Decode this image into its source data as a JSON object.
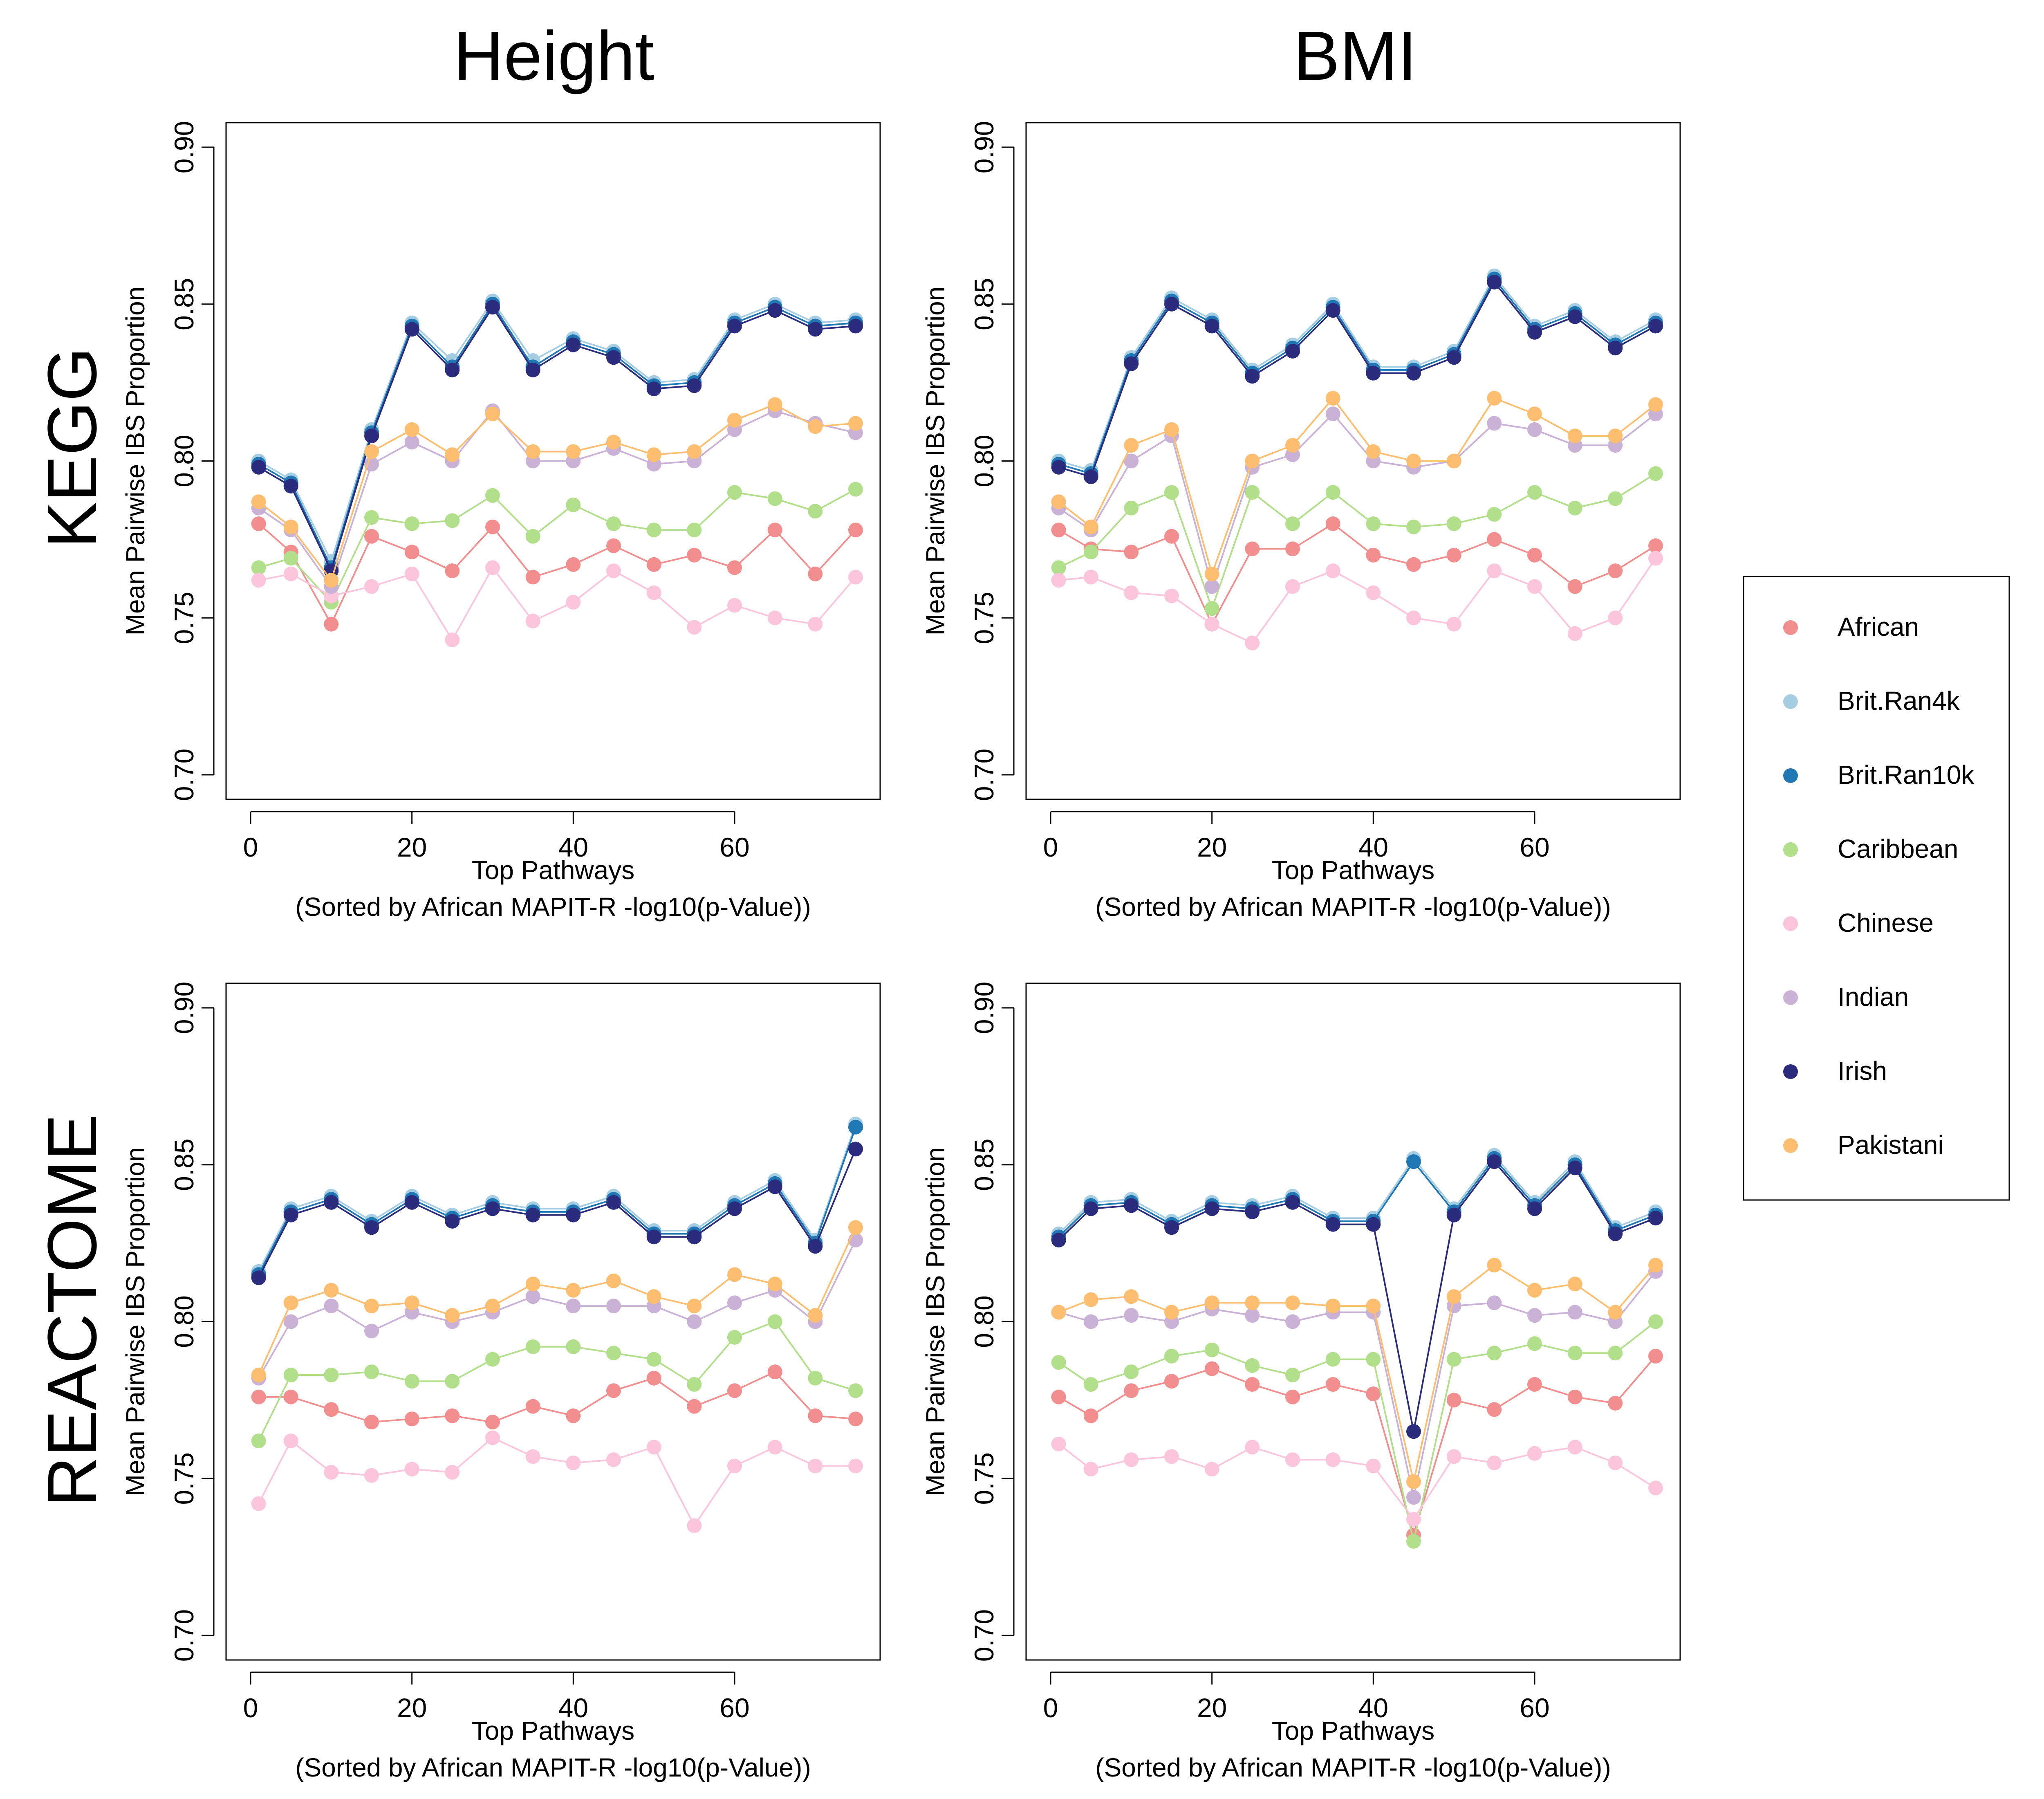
{
  "column_titles": [
    "Height",
    "BMI"
  ],
  "row_titles": [
    "KEGG",
    "REACTOME"
  ],
  "legend": [
    {
      "name": "African",
      "color": "#F28E8E"
    },
    {
      "name": "Brit.Ran4k",
      "color": "#A6CEE3"
    },
    {
      "name": "Brit.Ran10k",
      "color": "#1F78B4"
    },
    {
      "name": "Caribbean",
      "color": "#B2DF8A"
    },
    {
      "name": "Chinese",
      "color": "#FBC6DC"
    },
    {
      "name": "Indian",
      "color": "#CAB2D6"
    },
    {
      "name": "Irish",
      "color": "#2C2C7E"
    },
    {
      "name": "Pakistani",
      "color": "#FDBF6F"
    }
  ],
  "chart_data": [
    {
      "type": "line",
      "title": "Height",
      "row": "KEGG",
      "xlabel": "Top Pathways",
      "xlabel2": "(Sorted by African MAPIT-R -log10(p-Value))",
      "ylabel": "Mean Pairwise IBS Proportion",
      "xlim": [
        0,
        75
      ],
      "ylim": [
        0.7,
        0.9
      ],
      "xticks": [
        "0",
        "20",
        "40",
        "60"
      ],
      "yticks": [
        "0.70",
        "0.75",
        "0.80",
        "0.85",
        "0.90"
      ],
      "x": [
        1,
        5,
        10,
        15,
        20,
        25,
        30,
        35,
        40,
        45,
        50,
        55,
        60,
        65,
        70,
        75
      ],
      "series": [
        {
          "name": "African",
          "values": [
            0.78,
            0.771,
            0.748,
            0.776,
            0.771,
            0.765,
            0.779,
            0.763,
            0.767,
            0.773,
            0.767,
            0.77,
            0.766,
            0.778,
            0.764,
            0.778
          ]
        },
        {
          "name": "Brit.Ran4k",
          "values": [
            0.8,
            0.794,
            0.768,
            0.81,
            0.844,
            0.832,
            0.851,
            0.832,
            0.839,
            0.835,
            0.825,
            0.826,
            0.845,
            0.85,
            0.844,
            0.845
          ]
        },
        {
          "name": "Brit.Ran10k",
          "values": [
            0.799,
            0.793,
            0.766,
            0.809,
            0.843,
            0.83,
            0.85,
            0.83,
            0.838,
            0.834,
            0.824,
            0.825,
            0.844,
            0.849,
            0.843,
            0.844
          ]
        },
        {
          "name": "Caribbean",
          "values": [
            0.766,
            0.769,
            0.755,
            0.782,
            0.78,
            0.781,
            0.789,
            0.776,
            0.786,
            0.78,
            0.778,
            0.778,
            0.79,
            0.788,
            0.784,
            0.791
          ]
        },
        {
          "name": "Chinese",
          "values": [
            0.762,
            0.764,
            0.757,
            0.76,
            0.764,
            0.743,
            0.766,
            0.749,
            0.755,
            0.765,
            0.758,
            0.747,
            0.754,
            0.75,
            0.748,
            0.763
          ]
        },
        {
          "name": "Indian",
          "values": [
            0.785,
            0.778,
            0.76,
            0.799,
            0.806,
            0.8,
            0.816,
            0.8,
            0.8,
            0.804,
            0.799,
            0.8,
            0.81,
            0.816,
            0.812,
            0.809
          ]
        },
        {
          "name": "Irish",
          "values": [
            0.798,
            0.792,
            0.765,
            0.808,
            0.842,
            0.829,
            0.849,
            0.829,
            0.837,
            0.833,
            0.823,
            0.824,
            0.843,
            0.848,
            0.842,
            0.843
          ]
        },
        {
          "name": "Pakistani",
          "values": [
            0.787,
            0.779,
            0.762,
            0.803,
            0.81,
            0.802,
            0.815,
            0.803,
            0.803,
            0.806,
            0.802,
            0.803,
            0.813,
            0.818,
            0.811,
            0.812
          ]
        }
      ]
    },
    {
      "type": "line",
      "title": "BMI",
      "row": "KEGG",
      "xlabel": "Top Pathways",
      "xlabel2": "(Sorted by African MAPIT-R -log10(p-Value))",
      "ylabel": "Mean Pairwise IBS Proportion",
      "xlim": [
        0,
        75
      ],
      "ylim": [
        0.7,
        0.9
      ],
      "xticks": [
        "0",
        "20",
        "40",
        "60"
      ],
      "yticks": [
        "0.70",
        "0.75",
        "0.80",
        "0.85",
        "0.90"
      ],
      "x": [
        1,
        5,
        10,
        15,
        20,
        25,
        30,
        35,
        40,
        45,
        50,
        55,
        60,
        65,
        70,
        75
      ],
      "series": [
        {
          "name": "African",
          "values": [
            0.778,
            0.772,
            0.771,
            0.776,
            0.748,
            0.772,
            0.772,
            0.78,
            0.77,
            0.767,
            0.77,
            0.775,
            0.77,
            0.76,
            0.765,
            0.773
          ]
        },
        {
          "name": "Brit.Ran4k",
          "values": [
            0.8,
            0.797,
            0.833,
            0.852,
            0.845,
            0.829,
            0.837,
            0.85,
            0.83,
            0.83,
            0.835,
            0.859,
            0.843,
            0.848,
            0.838,
            0.845
          ]
        },
        {
          "name": "Brit.Ran10k",
          "values": [
            0.799,
            0.796,
            0.832,
            0.851,
            0.844,
            0.828,
            0.836,
            0.849,
            0.829,
            0.829,
            0.834,
            0.858,
            0.842,
            0.847,
            0.837,
            0.844
          ]
        },
        {
          "name": "Caribbean",
          "values": [
            0.766,
            0.771,
            0.785,
            0.79,
            0.753,
            0.79,
            0.78,
            0.79,
            0.78,
            0.779,
            0.78,
            0.783,
            0.79,
            0.785,
            0.788,
            0.796
          ]
        },
        {
          "name": "Chinese",
          "values": [
            0.762,
            0.763,
            0.758,
            0.757,
            0.748,
            0.742,
            0.76,
            0.765,
            0.758,
            0.75,
            0.748,
            0.765,
            0.76,
            0.745,
            0.75,
            0.769
          ]
        },
        {
          "name": "Indian",
          "values": [
            0.785,
            0.778,
            0.8,
            0.808,
            0.76,
            0.798,
            0.802,
            0.815,
            0.8,
            0.798,
            0.8,
            0.812,
            0.81,
            0.805,
            0.805,
            0.815
          ]
        },
        {
          "name": "Irish",
          "values": [
            0.798,
            0.795,
            0.831,
            0.85,
            0.843,
            0.827,
            0.835,
            0.848,
            0.828,
            0.828,
            0.833,
            0.857,
            0.841,
            0.846,
            0.836,
            0.843
          ]
        },
        {
          "name": "Pakistani",
          "values": [
            0.787,
            0.779,
            0.805,
            0.81,
            0.764,
            0.8,
            0.805,
            0.82,
            0.803,
            0.8,
            0.8,
            0.82,
            0.815,
            0.808,
            0.808,
            0.818
          ]
        }
      ]
    },
    {
      "type": "line",
      "title": "Height",
      "row": "REACTOME",
      "xlabel": "Top Pathways",
      "xlabel2": "(Sorted by African MAPIT-R -log10(p-Value))",
      "ylabel": "Mean Pairwise IBS Proportion",
      "xlim": [
        0,
        75
      ],
      "ylim": [
        0.7,
        0.9
      ],
      "xticks": [
        "0",
        "20",
        "40",
        "60"
      ],
      "yticks": [
        "0.70",
        "0.75",
        "0.80",
        "0.85",
        "0.90"
      ],
      "x": [
        1,
        5,
        10,
        15,
        20,
        25,
        30,
        35,
        40,
        45,
        50,
        55,
        60,
        65,
        70,
        75
      ],
      "series": [
        {
          "name": "African",
          "values": [
            0.776,
            0.776,
            0.772,
            0.768,
            0.769,
            0.77,
            0.768,
            0.773,
            0.77,
            0.778,
            0.782,
            0.773,
            0.778,
            0.784,
            0.77,
            0.769
          ]
        },
        {
          "name": "Brit.Ran4k",
          "values": [
            0.816,
            0.836,
            0.84,
            0.832,
            0.84,
            0.834,
            0.838,
            0.836,
            0.836,
            0.84,
            0.829,
            0.829,
            0.838,
            0.845,
            0.826,
            0.863
          ]
        },
        {
          "name": "Brit.Ran10k",
          "values": [
            0.815,
            0.835,
            0.839,
            0.831,
            0.839,
            0.833,
            0.837,
            0.835,
            0.835,
            0.839,
            0.828,
            0.828,
            0.837,
            0.844,
            0.825,
            0.862
          ]
        },
        {
          "name": "Caribbean",
          "values": [
            0.762,
            0.783,
            0.783,
            0.784,
            0.781,
            0.781,
            0.788,
            0.792,
            0.792,
            0.79,
            0.788,
            0.78,
            0.795,
            0.8,
            0.782,
            0.778
          ]
        },
        {
          "name": "Chinese",
          "values": [
            0.742,
            0.762,
            0.752,
            0.751,
            0.753,
            0.752,
            0.763,
            0.757,
            0.755,
            0.756,
            0.76,
            0.735,
            0.754,
            0.76,
            0.754,
            0.754
          ]
        },
        {
          "name": "Indian",
          "values": [
            0.782,
            0.8,
            0.805,
            0.797,
            0.803,
            0.8,
            0.803,
            0.808,
            0.805,
            0.805,
            0.805,
            0.8,
            0.806,
            0.81,
            0.8,
            0.826
          ]
        },
        {
          "name": "Irish",
          "values": [
            0.814,
            0.834,
            0.838,
            0.83,
            0.838,
            0.832,
            0.836,
            0.834,
            0.834,
            0.838,
            0.827,
            0.827,
            0.836,
            0.843,
            0.824,
            0.855
          ]
        },
        {
          "name": "Pakistani",
          "values": [
            0.783,
            0.806,
            0.81,
            0.805,
            0.806,
            0.802,
            0.805,
            0.812,
            0.81,
            0.813,
            0.808,
            0.805,
            0.815,
            0.812,
            0.802,
            0.83
          ]
        }
      ]
    },
    {
      "type": "line",
      "title": "BMI",
      "row": "REACTOME",
      "xlabel": "Top Pathways",
      "xlabel2": "(Sorted by African MAPIT-R -log10(p-Value))",
      "ylabel": "Mean Pairwise IBS Proportion",
      "xlim": [
        0,
        75
      ],
      "ylim": [
        0.7,
        0.9
      ],
      "xticks": [
        "0",
        "20",
        "40",
        "60"
      ],
      "yticks": [
        "0.70",
        "0.75",
        "0.80",
        "0.85",
        "0.90"
      ],
      "x": [
        1,
        5,
        10,
        15,
        20,
        25,
        30,
        35,
        40,
        45,
        50,
        55,
        60,
        65,
        70,
        75
      ],
      "series": [
        {
          "name": "African",
          "values": [
            0.776,
            0.77,
            0.778,
            0.781,
            0.785,
            0.78,
            0.776,
            0.78,
            0.777,
            0.732,
            0.775,
            0.772,
            0.78,
            0.776,
            0.774,
            0.789
          ]
        },
        {
          "name": "Brit.Ran4k",
          "values": [
            0.828,
            0.838,
            0.839,
            0.832,
            0.838,
            0.837,
            0.84,
            0.833,
            0.833,
            0.852,
            0.836,
            0.853,
            0.838,
            0.851,
            0.83,
            0.835
          ]
        },
        {
          "name": "Brit.Ran10k",
          "values": [
            0.827,
            0.837,
            0.838,
            0.831,
            0.837,
            0.836,
            0.839,
            0.832,
            0.832,
            0.851,
            0.835,
            0.852,
            0.837,
            0.85,
            0.829,
            0.834
          ]
        },
        {
          "name": "Caribbean",
          "values": [
            0.787,
            0.78,
            0.784,
            0.789,
            0.791,
            0.786,
            0.783,
            0.788,
            0.788,
            0.73,
            0.788,
            0.79,
            0.793,
            0.79,
            0.79,
            0.8
          ]
        },
        {
          "name": "Chinese",
          "values": [
            0.761,
            0.753,
            0.756,
            0.757,
            0.753,
            0.76,
            0.756,
            0.756,
            0.754,
            0.737,
            0.757,
            0.755,
            0.758,
            0.76,
            0.755,
            0.747
          ]
        },
        {
          "name": "Indian",
          "values": [
            0.803,
            0.8,
            0.802,
            0.8,
            0.804,
            0.802,
            0.8,
            0.803,
            0.803,
            0.744,
            0.805,
            0.806,
            0.802,
            0.803,
            0.8,
            0.816
          ]
        },
        {
          "name": "Irish",
          "values": [
            0.826,
            0.836,
            0.837,
            0.83,
            0.836,
            0.835,
            0.838,
            0.831,
            0.831,
            0.765,
            0.834,
            0.851,
            0.836,
            0.849,
            0.828,
            0.833
          ]
        },
        {
          "name": "Pakistani",
          "values": [
            0.803,
            0.807,
            0.808,
            0.803,
            0.806,
            0.806,
            0.806,
            0.805,
            0.805,
            0.749,
            0.808,
            0.818,
            0.81,
            0.812,
            0.803,
            0.818
          ]
        }
      ]
    }
  ]
}
